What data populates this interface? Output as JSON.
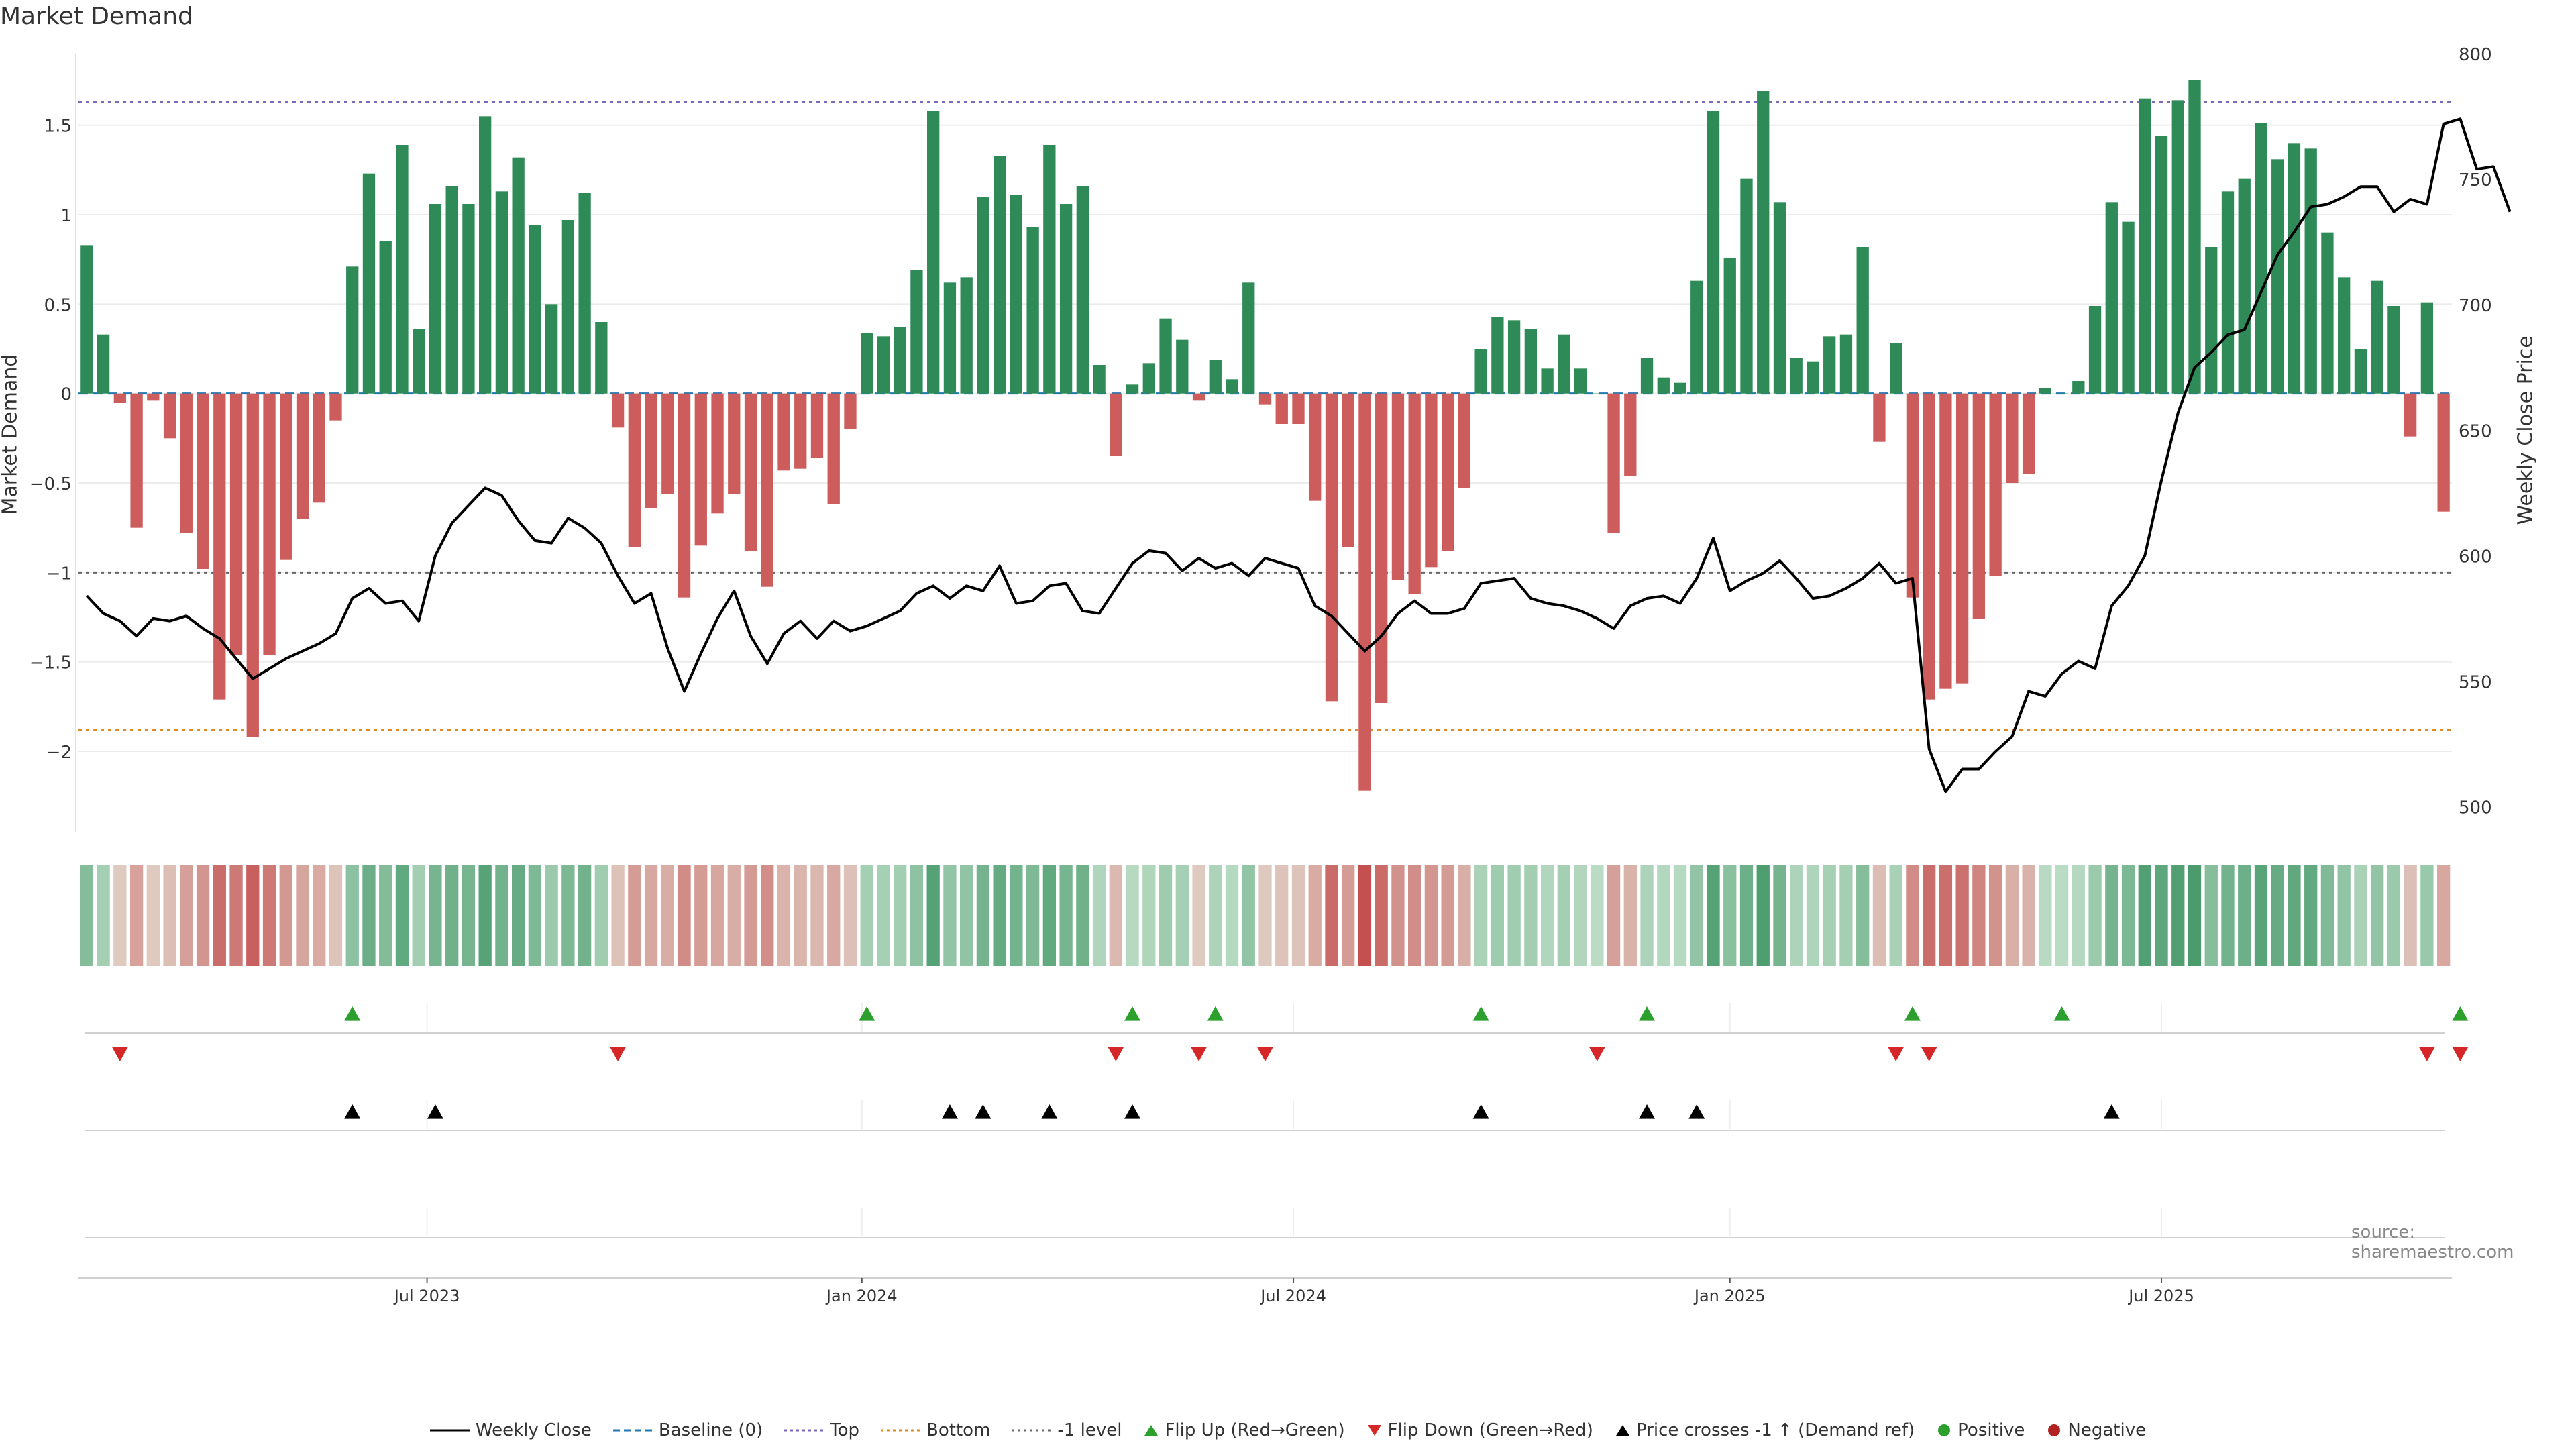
{
  "title": "Market Demand",
  "y_left_label": "Market Demand",
  "y_right_label": "Weekly Close Price",
  "source": "source: sharemaestro.com",
  "colors": {
    "positive": "#2e8b57",
    "negative": "#cd5c5c",
    "price": "#000000",
    "top": "#7b68b8",
    "bottom": "#e08a1e",
    "minus1": "#666666",
    "flip_up": "#2ca02c",
    "flip_down": "#d62728",
    "cross": "#000000"
  },
  "chart_data": {
    "type": "bar",
    "demand_ylim": [
      -2.45,
      1.9
    ],
    "price_ylim": [
      490,
      800
    ],
    "demand_ticks": [
      1.5,
      1,
      0.5,
      0,
      -0.5,
      -1,
      -1.5,
      -2
    ],
    "demand_tick_labels": [
      "1.5",
      "1",
      "0.5",
      "0",
      "−0.5",
      "−1",
      "−1.5",
      "−2"
    ],
    "price_ticks": [
      800,
      750,
      700,
      650,
      600,
      550,
      500
    ],
    "price_tick_labels": [
      "800",
      "750",
      "700",
      "650",
      "600",
      "550",
      "500"
    ],
    "date_ticks": [
      {
        "index": 20.5,
        "label": "Jul 2023"
      },
      {
        "index": 46.7,
        "label": "Jan 2024"
      },
      {
        "index": 72.7,
        "label": "Jul 2024"
      },
      {
        "index": 99.0,
        "label": "Jan 2025"
      },
      {
        "index": 125.0,
        "label": "Jul 2025"
      }
    ],
    "reference_levels": {
      "top": 1.63,
      "bottom": -1.88,
      "minus1": -1.0,
      "baseline": 0
    },
    "demand": [
      0.83,
      0.33,
      -0.05,
      -0.75,
      -0.04,
      -0.25,
      -0.78,
      -0.98,
      -1.71,
      -1.46,
      -1.92,
      -1.46,
      -0.93,
      -0.7,
      -0.61,
      -0.15,
      0.71,
      1.23,
      0.85,
      1.39,
      0.36,
      1.06,
      1.16,
      1.06,
      1.55,
      1.13,
      1.32,
      0.94,
      0.5,
      0.97,
      1.12,
      0.4,
      -0.19,
      -0.86,
      -0.64,
      -0.56,
      -1.14,
      -0.85,
      -0.67,
      -0.56,
      -0.88,
      -1.08,
      -0.43,
      -0.42,
      -0.36,
      -0.62,
      -0.2,
      0.34,
      0.32,
      0.37,
      0.69,
      1.58,
      0.62,
      0.65,
      1.1,
      1.33,
      1.11,
      0.93,
      1.39,
      1.06,
      1.16,
      0.16,
      -0.35,
      0.05,
      0.17,
      0.42,
      0.3,
      -0.04,
      0.19,
      0.08,
      0.62,
      -0.06,
      -0.17,
      -0.17,
      -0.6,
      -1.72,
      -0.86,
      -2.22,
      -1.73,
      -1.04,
      -1.12,
      -0.97,
      -0.88,
      -0.53,
      0.25,
      0.43,
      0.41,
      0.36,
      0.14,
      0.33,
      0.14,
      0.0,
      -0.78,
      -0.46,
      0.2,
      0.09,
      0.06,
      0.63,
      1.58,
      0.76,
      1.2,
      1.69,
      1.07,
      0.2,
      0.18,
      0.32,
      0.33,
      0.82,
      -0.27,
      0.28,
      -1.14,
      -1.71,
      -1.65,
      -1.62,
      -1.26,
      -1.02,
      -0.5,
      -0.45,
      0.03,
      0.0,
      0.07,
      0.49,
      1.07,
      0.96,
      1.65,
      1.44,
      1.64,
      1.75,
      0.82,
      1.13,
      1.2,
      1.51,
      1.31,
      1.4,
      1.37,
      0.9,
      0.65,
      0.25,
      0.63,
      0.49,
      -0.24,
      0.51,
      -0.66
    ],
    "price": [
      584,
      577,
      574,
      568,
      575,
      574,
      576,
      571,
      567,
      559,
      551,
      555,
      559,
      562,
      565,
      569,
      583,
      587,
      581,
      582,
      574,
      600,
      613,
      620,
      627,
      624,
      614,
      606,
      605,
      615,
      611,
      605,
      592,
      581,
      585,
      563,
      546,
      561,
      575,
      586,
      568,
      557,
      569,
      574,
      567,
      574,
      570,
      572,
      575,
      578,
      585,
      588,
      583,
      588,
      586,
      596,
      581,
      582,
      588,
      589,
      578,
      577,
      587,
      597,
      602,
      601,
      594,
      599,
      595,
      597,
      592,
      599,
      597,
      595,
      580,
      576,
      569,
      562,
      568,
      577,
      582,
      577,
      577,
      579,
      589,
      590,
      591,
      583,
      581,
      580,
      578,
      575,
      571,
      580,
      583,
      584,
      581,
      591,
      607,
      586,
      590,
      593,
      598,
      591,
      583,
      584,
      587,
      591,
      597,
      589,
      591,
      523,
      506,
      515,
      515,
      522,
      528,
      546,
      544,
      553,
      558,
      555,
      580,
      588,
      600,
      630,
      657,
      675,
      681,
      688,
      690,
      705,
      720,
      729,
      739,
      740,
      743,
      747,
      747,
      737,
      742,
      740,
      772,
      774,
      754,
      755,
      737
    ],
    "flip_up": [
      16,
      47,
      63,
      68,
      84,
      94,
      110,
      119,
      143
    ],
    "flip_down": [
      2,
      32,
      62,
      67,
      71,
      91,
      109,
      111,
      141,
      143
    ],
    "price_cross_up": [
      16,
      21,
      52,
      54,
      58,
      63,
      84,
      94,
      97,
      122
    ]
  },
  "legend": [
    {
      "key": "weekly-close",
      "label": "Weekly Close",
      "kind": "line-solid",
      "color": "#000000"
    },
    {
      "key": "baseline",
      "label": "Baseline (0)",
      "kind": "line-dashed",
      "color": "#1f77b4"
    },
    {
      "key": "top",
      "label": "Top",
      "kind": "line-dotted",
      "color": "#7b68b8"
    },
    {
      "key": "bottom",
      "label": "Bottom",
      "kind": "line-dotted",
      "color": "#e08a1e"
    },
    {
      "key": "minus1",
      "label": "-1 level",
      "kind": "line-dotted",
      "color": "#666666"
    },
    {
      "key": "flip-up",
      "label": "Flip Up (Red→Green)",
      "kind": "tri-up",
      "color": "#2ca02c"
    },
    {
      "key": "flip-down",
      "label": "Flip Down (Green→Red)",
      "kind": "tri-down",
      "color": "#d62728"
    },
    {
      "key": "price-cross",
      "label": "Price crosses -1 ↑ (Demand ref)",
      "kind": "tri-up",
      "color": "#000000"
    },
    {
      "key": "positive",
      "label": "Positive",
      "kind": "dot",
      "color": "#2ca02c"
    },
    {
      "key": "negative",
      "label": "Negative",
      "kind": "dot",
      "color": "#b22222"
    }
  ]
}
